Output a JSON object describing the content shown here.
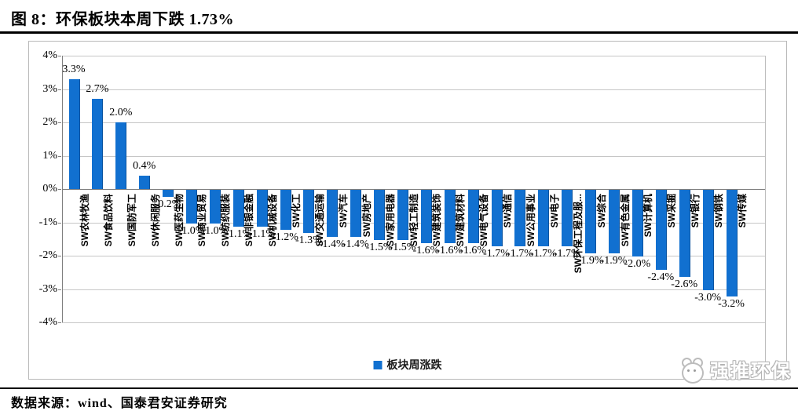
{
  "header": {
    "title": "图 8：环保板块本周下跌 1.73%"
  },
  "chart_data": {
    "type": "bar",
    "title": "图 8：环保板块本周下跌 1.73%",
    "categories": [
      "SW农林牧渔",
      "SW食品饮料",
      "SW国防军工",
      "SW休闲服务",
      "SW医药生物",
      "SW商业贸易",
      "SW纺织服装",
      "SW非银金融",
      "SW机械设备",
      "SW化工",
      "SW交通运输",
      "SW汽车",
      "SW房地产",
      "SW家用电器",
      "SW轻工制造",
      "SW建筑装饰",
      "SW建筑材料",
      "SW电气设备",
      "SW通信",
      "SW公用事业",
      "SW电子",
      "SW环保工程及服...",
      "SW综合",
      "SW有色金属",
      "SW计算机",
      "SW采掘",
      "SW银行",
      "SW钢铁",
      "SW传媒"
    ],
    "values": [
      3.3,
      2.7,
      2.0,
      0.4,
      -0.2,
      -1.0,
      -1.0,
      -1.1,
      -1.1,
      -1.2,
      -1.3,
      -1.4,
      -1.4,
      -1.5,
      -1.5,
      -1.6,
      -1.6,
      -1.6,
      -1.7,
      -1.7,
      -1.7,
      -1.7,
      -1.9,
      -1.9,
      -2.0,
      -2.4,
      -2.6,
      -3.0,
      -3.2
    ],
    "value_labels": [
      "3.3%",
      "2.7%",
      "2.0%",
      "0.4%",
      "-0.2%",
      "-1.0%",
      "-1.0%",
      "-1.1%",
      "-1.1%",
      "-1.2%",
      "-1.3%",
      "-1.4%",
      "-1.4%",
      "-1.5%",
      "-1.5%",
      "-1.6%",
      "-1.6%",
      "-1.6%",
      "-1.7%",
      "-1.7%",
      "-1.7%",
      "-1.7%",
      "-1.9%",
      "-1.9%",
      "-2.0%",
      "-2.4%",
      "-2.6%",
      "-3.0%",
      "-3.2%"
    ],
    "xlabel": "",
    "ylabel": "",
    "ylim": [
      -4,
      4
    ],
    "ytick_values": [
      4,
      3,
      2,
      1,
      0,
      -1,
      -2,
      -3,
      -4
    ],
    "ytick_labels": [
      "4%",
      "3%",
      "2%",
      "1%",
      "0%",
      "-1%",
      "-2%",
      "-3%",
      "-4%"
    ],
    "grid": true,
    "legend": [
      {
        "label": "板块周涨跌",
        "color": "#1170d0"
      }
    ],
    "legend_position": "bottom",
    "bar_color": "#1170d0"
  },
  "watermark": {
    "text": "强推环保",
    "icon": "mascot-face-icon"
  },
  "footer": {
    "source": "数据来源：wind、国泰君安证券研究"
  }
}
